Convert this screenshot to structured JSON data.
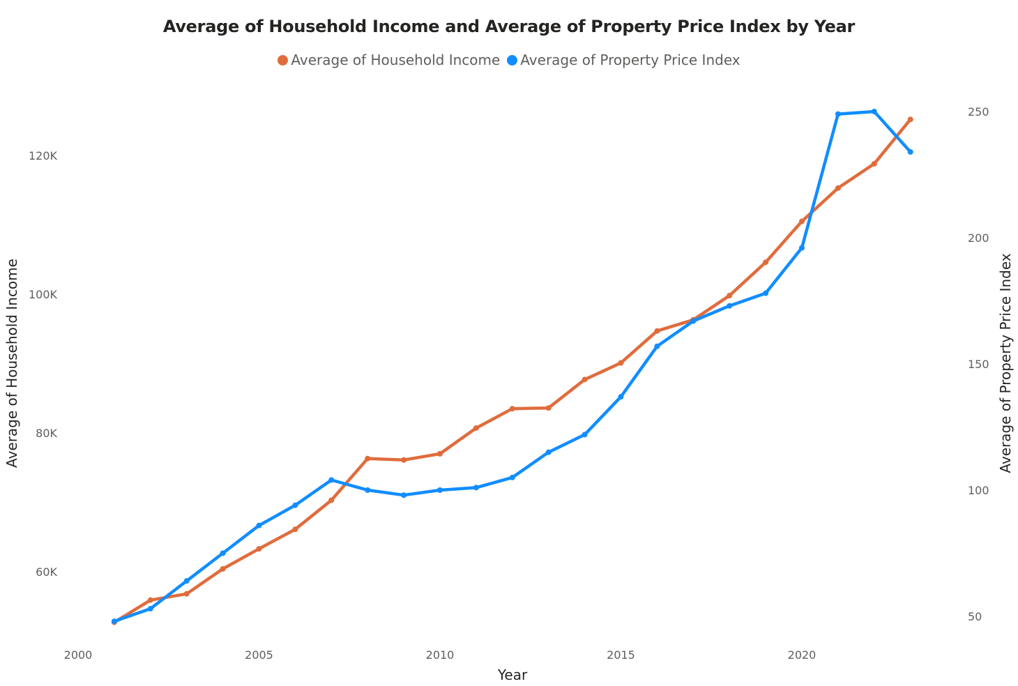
{
  "chart_data": {
    "type": "line",
    "title": "Average of Household Income and Average of Property Price Index by Year",
    "xlabel": "Year",
    "ylabel_left": "Average of Household Income",
    "ylabel_right": "Average of Property Price Index",
    "x": [
      2001,
      2002,
      2003,
      2004,
      2005,
      2006,
      2007,
      2008,
      2009,
      2010,
      2011,
      2012,
      2013,
      2014,
      2015,
      2016,
      2017,
      2018,
      2019,
      2020,
      2021,
      2022,
      2023
    ],
    "x_ticks": [
      2000,
      2005,
      2010,
      2015,
      2020
    ],
    "x_tick_labels": [
      "2000",
      "2005",
      "2010",
      "2015",
      "2020"
    ],
    "xlim": [
      2000,
      2023
    ],
    "y_left_ticks": [
      60000,
      80000,
      100000,
      120000
    ],
    "y_left_tick_labels": [
      "60K",
      "80K",
      "100K",
      "120K"
    ],
    "ylim_left": [
      53000,
      127000
    ],
    "y_right_ticks": [
      50,
      100,
      150,
      200,
      250
    ],
    "y_right_tick_labels": [
      "50",
      "100",
      "150",
      "200",
      "250"
    ],
    "ylim_right": [
      44,
      254
    ],
    "grid": false,
    "legend_position": "top-center",
    "series": [
      {
        "name": "Average of Household Income",
        "axis": "left",
        "color": "#E06C3C",
        "values": [
          52700,
          55900,
          56800,
          60400,
          63300,
          66100,
          70300,
          76300,
          76100,
          77000,
          80700,
          83500,
          83600,
          87700,
          90100,
          94700,
          96300,
          99800,
          104600,
          110500,
          115300,
          118800,
          125200
        ]
      },
      {
        "name": "Average of Property Price Index",
        "axis": "right",
        "color": "#118DFF",
        "values": [
          48,
          53,
          64,
          75,
          86,
          94,
          104,
          100,
          98,
          100,
          101,
          105,
          115,
          122,
          137,
          157,
          167,
          173,
          178,
          196,
          249,
          250,
          234
        ]
      }
    ]
  }
}
